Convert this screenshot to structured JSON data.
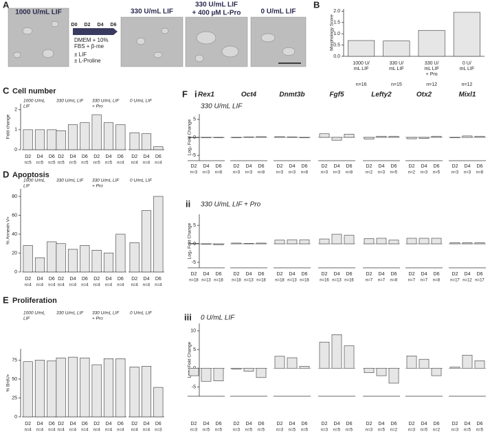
{
  "panel_a": {
    "label": "A",
    "captions": [
      [
        "1000 U/mL LIF"
      ],
      [
        "330 U/mL LIF"
      ],
      [
        "330 U/mL LIF",
        "+ 400 µM L-Pro"
      ],
      [
        "0 U/mL LIF"
      ]
    ],
    "days": [
      "D0",
      "D2",
      "D4",
      "D6"
    ],
    "medium": [
      "DMEM + 10%",
      "FBS + β-me"
    ],
    "options": [
      "± LIF",
      "± L-Proline"
    ]
  },
  "panel_f": {
    "label": "F",
    "genes": [
      "Rex1",
      "Oct4",
      "Dnmt3b",
      "Fgf5",
      "Lefty2",
      "Otx2",
      "Mixl1"
    ]
  },
  "chart_data": [
    {
      "type": "bar",
      "panel": "B",
      "ylabel": "Morphology Score",
      "categories": [
        [
          "1000 U/",
          "mL LIF"
        ],
        [
          "330 U/",
          "mL LIF"
        ],
        [
          "330 U/",
          "mL LIF",
          "+ Pro"
        ],
        [
          "0 U/",
          "mL LIF"
        ]
      ],
      "values": [
        0.7,
        0.68,
        1.15,
        1.95
      ],
      "n_labels": [
        "n=16",
        "n=15",
        "n=12",
        "n=12"
      ],
      "color": "#e6e6e6",
      "ylim": [
        0,
        2.1
      ],
      "yticks": [
        {
          "value": 0,
          "label": "0.0"
        },
        0.5,
        {
          "value": 1,
          "label": "1.0"
        },
        1.5,
        {
          "value": 2,
          "label": "2.0"
        }
      ]
    },
    {
      "type": "grouped_bar",
      "panel": "C",
      "title": "Cell number",
      "ylabel": "Fold change",
      "color": "#e6e6e6",
      "ylim": [
        0,
        2.3
      ],
      "yticks": [
        0,
        1,
        2
      ],
      "groups": [
        {
          "title": [
            "1000 U/mL",
            "LIF"
          ],
          "categories": [
            "D2",
            "D4",
            "D6"
          ],
          "values": [
            1,
            1,
            1
          ],
          "n_labels": [
            "n=5",
            "n=5",
            "n=5"
          ]
        },
        {
          "title": [
            "330 U/mL LIF"
          ],
          "categories": [
            "D2",
            "D4",
            "D6"
          ],
          "values": [
            0.95,
            1.25,
            1.35
          ],
          "n_labels": [
            "n=5",
            "n=5",
            "n=5"
          ]
        },
        {
          "title": [
            "330 U/mL LIF",
            "+ Pro"
          ],
          "categories": [
            "D2",
            "D4",
            "D6"
          ],
          "values": [
            1.75,
            1.35,
            1.25
          ],
          "n_labels": [
            "n=5",
            "n=5",
            "n=4"
          ]
        },
        {
          "title": [
            "0 U/mL LIF"
          ],
          "categories": [
            "D2",
            "D4",
            "D6"
          ],
          "values": [
            0.85,
            0.8,
            0.15
          ],
          "n_labels": [
            "n=4",
            "n=4",
            "n=4"
          ]
        }
      ]
    },
    {
      "type": "grouped_bar",
      "panel": "D",
      "title": "Apoptosis",
      "ylabel": "% Annexin V+",
      "color": "#e6e6e6",
      "ylim": [
        0,
        88
      ],
      "yticks": [
        0,
        20,
        40,
        60,
        80
      ],
      "groups": [
        {
          "title": [
            "1000 U/mL",
            "LIF"
          ],
          "categories": [
            "D2",
            "D4",
            "D6"
          ],
          "values": [
            28,
            15,
            32
          ],
          "n_labels": [
            "n=4",
            "n=4",
            "n=4"
          ]
        },
        {
          "title": [
            "330 U/mL LIF"
          ],
          "categories": [
            "D2",
            "D4",
            "D6"
          ],
          "values": [
            30,
            24,
            28
          ],
          "n_labels": [
            "n=4",
            "n=4",
            "n=4"
          ]
        },
        {
          "title": [
            "330 U/mL LIF",
            "+ Pro"
          ],
          "categories": [
            "D2",
            "D4",
            "D6"
          ],
          "values": [
            23,
            20,
            40
          ],
          "n_labels": [
            "n=4",
            "n=4",
            "n=4"
          ]
        },
        {
          "title": [
            "0 U/mL LIF"
          ],
          "categories": [
            "D2",
            "D4",
            "D6"
          ],
          "values": [
            31,
            65,
            80
          ],
          "n_labels": [
            "n=4",
            "n=4",
            "n=4"
          ]
        }
      ]
    },
    {
      "type": "grouped_bar",
      "panel": "E",
      "title": "Proliferation",
      "ylabel": "% BrdU+",
      "color": "#e6e6e6",
      "ylim": [
        0,
        90
      ],
      "yticks": [
        0,
        25,
        50,
        75
      ],
      "groups": [
        {
          "title": [
            "1000 U/mL",
            "LIF"
          ],
          "categories": [
            "D2",
            "D4",
            "D6"
          ],
          "values": [
            73,
            75,
            74
          ],
          "n_labels": [
            "n=4",
            "n=4",
            "n=4"
          ]
        },
        {
          "title": [
            "330 U/mL LIF"
          ],
          "categories": [
            "D2",
            "D4",
            "D6"
          ],
          "values": [
            78,
            79,
            78
          ],
          "n_labels": [
            "n=4",
            "n=4",
            "n=4"
          ]
        },
        {
          "title": [
            "330 U/mL LIF",
            "+ Pro"
          ],
          "categories": [
            "D2",
            "D4",
            "D6"
          ],
          "values": [
            69,
            77,
            77
          ],
          "n_labels": [
            "n=4",
            "n=4",
            "n=4"
          ]
        },
        {
          "title": [
            "0 U/mL LIF"
          ],
          "categories": [
            "D2",
            "D4",
            "D6"
          ],
          "values": [
            66,
            67,
            39
          ],
          "n_labels": [
            "n=4",
            "n=4",
            "n=3"
          ]
        }
      ]
    },
    {
      "type": "grouped_bar",
      "panel": "i",
      "subtitle": "330 U/mL LIF",
      "ylabel": "Log₂ Fold Change",
      "color": "#e6e6e6",
      "ylim": [
        -6.5,
        6.5
      ],
      "yticks": [
        -5,
        0,
        5
      ],
      "groups": [
        {
          "categories": [
            "D2",
            "D4",
            "D6"
          ],
          "values": [
            0,
            0,
            0
          ],
          "n_labels": [
            "n=3",
            "n=3",
            "n=8"
          ]
        },
        {
          "categories": [
            "D2",
            "D4",
            "D6"
          ],
          "values": [
            0,
            0.1,
            0.2
          ],
          "n_labels": [
            "n=3",
            "n=3",
            "n=8"
          ]
        },
        {
          "categories": [
            "D2",
            "D4",
            "D6"
          ],
          "values": [
            0.2,
            0.1,
            0
          ],
          "n_labels": [
            "n=3",
            "n=3",
            "n=8"
          ]
        },
        {
          "categories": [
            "D2",
            "D4",
            "D6"
          ],
          "values": [
            1,
            -0.8,
            0.9
          ],
          "n_labels": [
            "n=3",
            "n=3",
            "n=8"
          ]
        },
        {
          "categories": [
            "D2",
            "D4",
            "D6"
          ],
          "values": [
            -0.5,
            0.3,
            0.3
          ],
          "n_labels": [
            "n=2",
            "n=3",
            "n=5"
          ]
        },
        {
          "categories": [
            "D2",
            "D4",
            "D6"
          ],
          "values": [
            -0.4,
            -0.3,
            0.3
          ],
          "n_labels": [
            "n=2",
            "n=3",
            "n=5"
          ]
        },
        {
          "categories": [
            "D2",
            "D4",
            "D6"
          ],
          "values": [
            0,
            0.4,
            0.3
          ],
          "n_labels": [
            "n=3",
            "n=3",
            "n=8"
          ]
        }
      ]
    },
    {
      "type": "grouped_bar",
      "panel": "ii",
      "subtitle": "330 U/mL LIF + Pro",
      "ylabel": "Log₂ Fold Change",
      "color": "#e6e6e6",
      "ylim": [
        -6.5,
        8
      ],
      "yticks": [
        -5,
        0,
        5
      ],
      "groups": [
        {
          "categories": [
            "D2",
            "D4",
            "D6"
          ],
          "values": [
            0.1,
            -0.1,
            -0.3
          ],
          "n_labels": [
            "n=18",
            "n=13",
            "n=18"
          ]
        },
        {
          "categories": [
            "D2",
            "D4",
            "D6"
          ],
          "values": [
            0.2,
            0.1,
            0.2
          ],
          "n_labels": [
            "n=18",
            "n=13",
            "n=18"
          ]
        },
        {
          "categories": [
            "D2",
            "D4",
            "D6"
          ],
          "values": [
            1,
            1.1,
            1.1
          ],
          "n_labels": [
            "n=18",
            "n=13",
            "n=18"
          ]
        },
        {
          "categories": [
            "D2",
            "D4",
            "D6"
          ],
          "values": [
            1.3,
            2.6,
            2.3
          ],
          "n_labels": [
            "n=16",
            "n=13",
            "n=16"
          ]
        },
        {
          "categories": [
            "D2",
            "D4",
            "D6"
          ],
          "values": [
            1.4,
            1.5,
            1
          ],
          "n_labels": [
            "n=7",
            "n=7",
            "n=8"
          ]
        },
        {
          "categories": [
            "D2",
            "D4",
            "D6"
          ],
          "values": [
            1.5,
            1.5,
            1.5
          ],
          "n_labels": [
            "n=7",
            "n=7",
            "n=8"
          ]
        },
        {
          "categories": [
            "D2",
            "D4",
            "D6"
          ],
          "values": [
            0.3,
            0.3,
            0.3
          ],
          "n_labels": [
            "n=17",
            "n=12",
            "n=17"
          ]
        }
      ]
    },
    {
      "type": "grouped_bar",
      "panel": "iii",
      "subtitle": "0 U/mL LIF",
      "ylabel": "Log₂ Fold Change",
      "color": "#e6e6e6",
      "ylim": [
        -7.5,
        12
      ],
      "yticks": [
        -5,
        0,
        5,
        10
      ],
      "groups": [
        {
          "categories": [
            "D2",
            "D4",
            "D6"
          ],
          "values": [
            -2,
            -3.5,
            -3.4
          ],
          "n_labels": [
            "n=3",
            "n=5",
            "n=5"
          ]
        },
        {
          "categories": [
            "D2",
            "D4",
            "D6"
          ],
          "values": [
            -0.2,
            -0.8,
            -2.5
          ],
          "n_labels": [
            "n=3",
            "n=5",
            "n=5"
          ]
        },
        {
          "categories": [
            "D2",
            "D4",
            "D6"
          ],
          "values": [
            3.2,
            2.8,
            0.5
          ],
          "n_labels": [
            "n=3",
            "n=5",
            "n=5"
          ]
        },
        {
          "categories": [
            "D2",
            "D4",
            "D6"
          ],
          "values": [
            7,
            9,
            6
          ],
          "n_labels": [
            "n=3",
            "n=5",
            "n=5"
          ]
        },
        {
          "categories": [
            "D2",
            "D4",
            "D6"
          ],
          "values": [
            -1.2,
            -2,
            -4
          ],
          "n_labels": [
            "n=3",
            "n=5",
            "n=2"
          ]
        },
        {
          "categories": [
            "D2",
            "D4",
            "D6"
          ],
          "values": [
            3.3,
            2.4,
            -2
          ],
          "n_labels": [
            "n=3",
            "n=5",
            "n=2"
          ]
        },
        {
          "categories": [
            "D2",
            "D4",
            "D6"
          ],
          "values": [
            0.3,
            3.5,
            2
          ],
          "n_labels": [
            "n=3",
            "n=5",
            "n=5"
          ]
        }
      ]
    }
  ]
}
